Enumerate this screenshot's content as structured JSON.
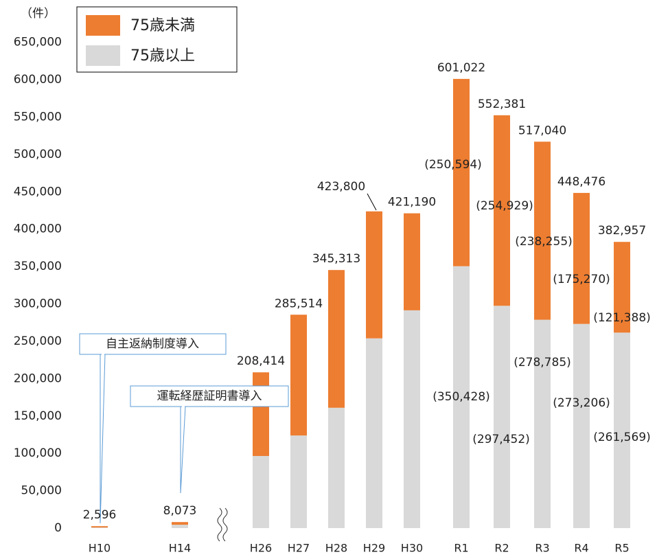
{
  "chart_data": {
    "type": "stacked-bar",
    "y_unit": "（件）",
    "categories": [
      "H10",
      "H14",
      "H26",
      "H27",
      "H28",
      "H29",
      "H30",
      "R1",
      "R2",
      "R3",
      "R4",
      "R5"
    ],
    "series": [
      {
        "name": "75歳以上",
        "color": "#d9d9d9",
        "values": [
          800,
          4500,
          96500,
          123900,
          161000,
          253900,
          291400,
          350428,
          297452,
          278785,
          273206,
          261569
        ],
        "value_labels": [
          null,
          null,
          null,
          null,
          null,
          null,
          null,
          "(350,428)",
          "(297,452)",
          "(278,785)",
          "(273,206)",
          "(261,569)"
        ]
      },
      {
        "name": "75歳未満",
        "color": "#ed7d31",
        "values": [
          1796,
          3573,
          111914,
          161614,
          184313,
          169900,
          129790,
          250594,
          254929,
          238255,
          175270,
          121388
        ],
        "value_labels": [
          null,
          null,
          null,
          null,
          null,
          null,
          null,
          "(250,594)",
          "(254,929)",
          "(238,255)",
          "(175,270)",
          "(121,388)"
        ]
      }
    ],
    "totals": [
      2596,
      8073,
      208414,
      285514,
      345313,
      423800,
      421190,
      601022,
      552381,
      517040,
      448476,
      382957
    ],
    "total_labels": [
      "2,596",
      "8,073",
      "208,414",
      "285,514",
      "345,313",
      "423,800",
      "421,190",
      "601,022",
      "552,381",
      "517,040",
      "448,476",
      "382,957"
    ],
    "annotations": [
      "自主返納制度導入",
      "運転経歴証明書導入"
    ],
    "ylim": [
      0,
      650000
    ],
    "yticks": [
      0,
      {
        "value": 50000,
        "label": "50,000"
      },
      {
        "value": 100000,
        "label": "100,000"
      },
      {
        "value": 150000,
        "label": "150,000"
      },
      {
        "value": 200000,
        "label": "200,000"
      },
      {
        "value": 250000,
        "label": "250,000"
      },
      {
        "value": 300000,
        "label": "300,000"
      },
      {
        "value": 350000,
        "label": "350,000"
      },
      {
        "value": 400000,
        "label": "400,000"
      },
      {
        "value": 450000,
        "label": "450,000"
      },
      {
        "value": 500000,
        "label": "500,000"
      },
      {
        "value": 550000,
        "label": "550,000"
      },
      {
        "value": 600000,
        "label": "600,000"
      },
      {
        "value": 650000,
        "label": "650,000"
      }
    ],
    "grid": false
  }
}
